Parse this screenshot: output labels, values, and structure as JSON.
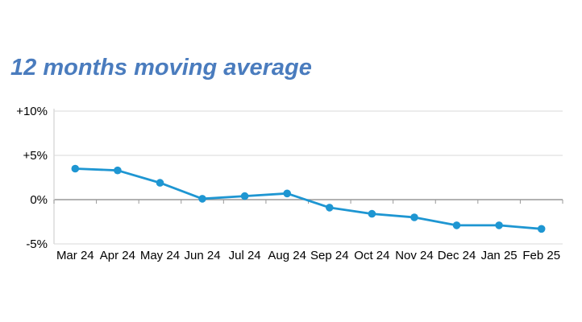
{
  "title": {
    "text": "12 months moving average"
  },
  "colors": {
    "title_blue": "#4a7cbe",
    "line_blue": "#1e96d2",
    "gridline": "#d9d9d9",
    "zero_axis": "#999999",
    "axis_light": "#d9d9d9",
    "tick": "#999999",
    "label_text": "#000000"
  },
  "chart_data": {
    "type": "line",
    "title": "12 months moving average",
    "categories": [
      "Mar 24",
      "Apr 24",
      "May 24",
      "Jun 24",
      "Jul 24",
      "Aug 24",
      "Sep 24",
      "Oct 24",
      "Nov 24",
      "Dec 24",
      "Jan 25",
      "Feb 25"
    ],
    "series": [
      {
        "name": "12 months moving average",
        "values": [
          3.5,
          3.3,
          1.9,
          0.1,
          0.4,
          0.7,
          -0.9,
          -1.6,
          -2.0,
          -2.9,
          -2.9,
          -3.3
        ]
      }
    ],
    "xlabel": "",
    "ylabel": "",
    "ylim": [
      -5,
      10
    ],
    "ytick_values": [
      10,
      5,
      0,
      -5
    ],
    "ytick_labels": [
      "+10%",
      "+5%",
      "0%",
      "-5%"
    ],
    "grid": true,
    "legend": "none",
    "marker": "circle"
  }
}
